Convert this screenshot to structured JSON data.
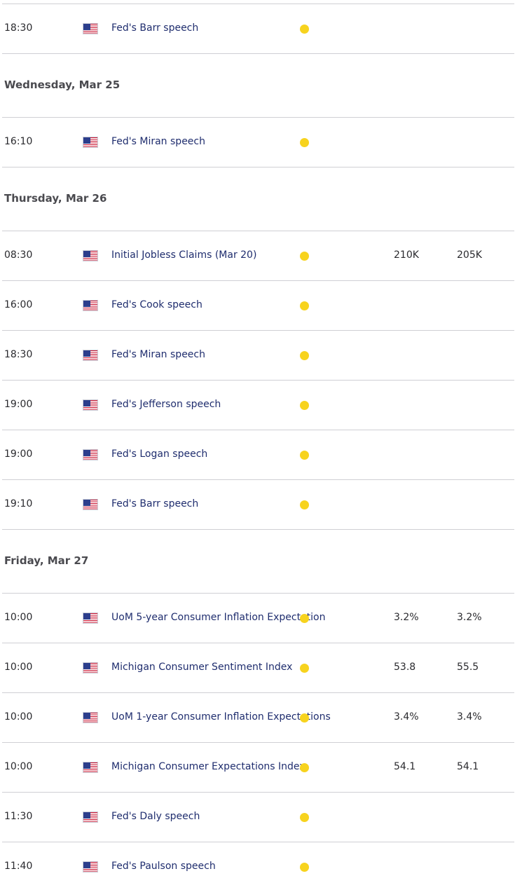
{
  "calendar": [
    {
      "type": "event",
      "time": "18:30",
      "country": "us-flag-icon",
      "event": "Fed's Barr speech",
      "importance": "medium",
      "previous": "",
      "consensus": ""
    },
    {
      "type": "day",
      "label": "Wednesday, Mar 25"
    },
    {
      "type": "event",
      "time": "16:10",
      "country": "us-flag-icon",
      "event": "Fed's Miran speech",
      "importance": "medium",
      "previous": "",
      "consensus": ""
    },
    {
      "type": "day",
      "label": "Thursday, Mar 26"
    },
    {
      "type": "event",
      "time": "08:30",
      "country": "us-flag-icon",
      "event": "Initial Jobless Claims (Mar 20)",
      "importance": "medium",
      "previous": "210K",
      "consensus": "205K"
    },
    {
      "type": "event",
      "time": "16:00",
      "country": "us-flag-icon",
      "event": "Fed's Cook speech",
      "importance": "medium",
      "previous": "",
      "consensus": ""
    },
    {
      "type": "event",
      "time": "18:30",
      "country": "us-flag-icon",
      "event": "Fed's Miran speech",
      "importance": "medium",
      "previous": "",
      "consensus": ""
    },
    {
      "type": "event",
      "time": "19:00",
      "country": "us-flag-icon",
      "event": "Fed's Jefferson speech",
      "importance": "medium",
      "previous": "",
      "consensus": ""
    },
    {
      "type": "event",
      "time": "19:00",
      "country": "us-flag-icon",
      "event": "Fed's Logan speech",
      "importance": "medium",
      "previous": "",
      "consensus": ""
    },
    {
      "type": "event",
      "time": "19:10",
      "country": "us-flag-icon",
      "event": "Fed's Barr speech",
      "importance": "medium",
      "previous": "",
      "consensus": ""
    },
    {
      "type": "day",
      "label": "Friday, Mar 27"
    },
    {
      "type": "event",
      "time": "10:00",
      "country": "us-flag-icon",
      "event": "UoM 5-year Consumer Inflation Expectation",
      "importance": "medium",
      "previous": "3.2%",
      "consensus": "3.2%"
    },
    {
      "type": "event",
      "time": "10:00",
      "country": "us-flag-icon",
      "event": "Michigan Consumer Sentiment Index",
      "importance": "medium",
      "previous": "53.8",
      "consensus": "55.5"
    },
    {
      "type": "event",
      "time": "10:00",
      "country": "us-flag-icon",
      "event": "UoM 1-year Consumer Inflation Expectations",
      "importance": "medium",
      "previous": "3.4%",
      "consensus": "3.4%"
    },
    {
      "type": "event",
      "time": "10:00",
      "country": "us-flag-icon",
      "event": "Michigan Consumer Expectations Index",
      "importance": "medium",
      "previous": "54.1",
      "consensus": "54.1"
    },
    {
      "type": "event",
      "time": "11:30",
      "country": "us-flag-icon",
      "event": "Fed's Daly speech",
      "importance": "medium",
      "previous": "",
      "consensus": ""
    },
    {
      "type": "event",
      "time": "11:40",
      "country": "us-flag-icon",
      "event": "Fed's Paulson speech",
      "importance": "medium",
      "previous": "",
      "consensus": ""
    }
  ],
  "colors": {
    "importance_medium": "#f7d31e",
    "event_text": "#1f2d6e",
    "day_header": "#4a4a4f",
    "divider": "#cfcfd4"
  }
}
